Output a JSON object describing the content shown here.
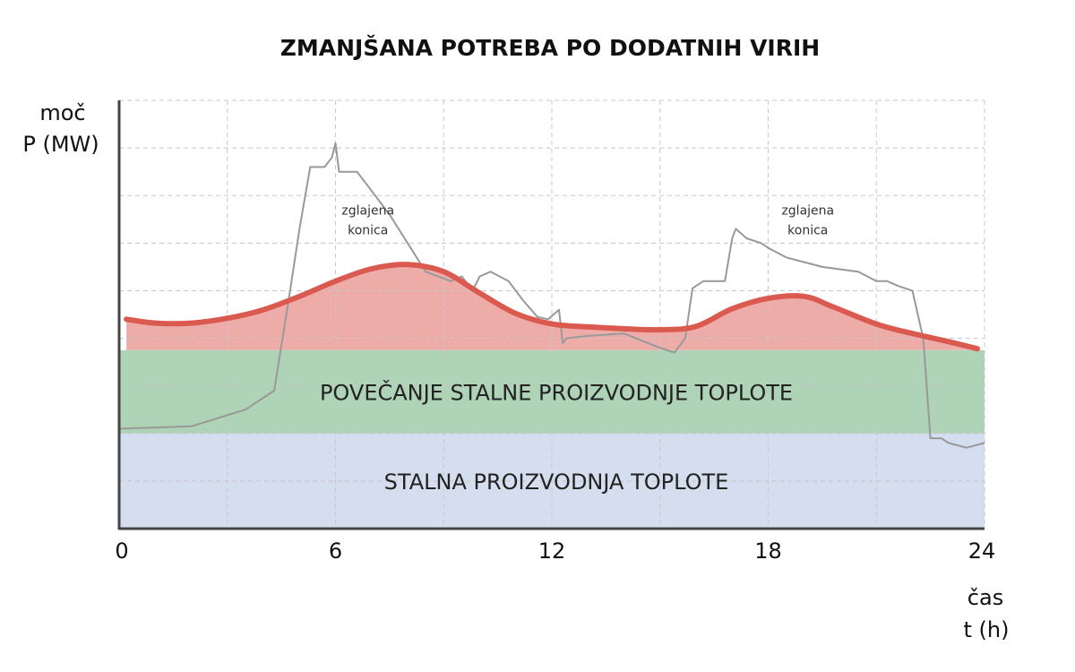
{
  "chart_data": {
    "type": "area",
    "title": "ZMANJŠANA POTREBA PO DODATNIH VIRIH",
    "ylabel": [
      "moč",
      "P (MW)"
    ],
    "xlabel": [
      "čas",
      "t (h)"
    ],
    "xlim": [
      0,
      24
    ],
    "ylim": [
      0,
      9
    ],
    "x_ticks": [
      0,
      6,
      12,
      18,
      24
    ],
    "grid": true,
    "colors": {
      "base_band": "#d4deef",
      "increase_band": "#aed3b6",
      "reduced_area": "#eeaca9",
      "reduced_line": "#db5a50",
      "original_line": "#999999",
      "grid": "#c8c8c8",
      "axis": "#444444"
    },
    "bands": [
      {
        "name": "STALNA PROIZVODNJA TOPLOTE",
        "from": 0,
        "to": 2.0
      },
      {
        "name": "POVEČANJE STALNE PROIZVODNJE TOPLOTE",
        "from": 2.0,
        "to": 3.75
      }
    ],
    "annotations": [
      {
        "text": [
          "zglajena",
          "konica"
        ],
        "x": 6.9,
        "y": 6.6
      },
      {
        "text": [
          "zglajena",
          "konica"
        ],
        "x": 19.1,
        "y": 6.6
      }
    ],
    "series": [
      {
        "role": "original",
        "x": [
          0,
          2,
          3.5,
          4.3,
          4.7,
          5.0,
          5.3,
          5.7,
          5.9,
          6.0,
          6.1,
          6.3,
          6.6,
          7.5,
          8.5,
          9.2,
          9.5,
          9.8,
          10.0,
          10.3,
          10.8,
          11.2,
          11.6,
          11.9,
          12.2,
          12.3,
          12.4,
          13.0,
          14.0,
          15.0,
          15.4,
          15.7,
          15.9,
          16.2,
          16.8,
          17.0,
          17.1,
          17.4,
          17.8,
          18.0,
          18.5,
          19.5,
          20.5,
          21.0,
          21.3,
          21.6,
          22.0,
          22.3,
          22.5,
          22.8,
          23.0,
          23.5,
          24.0
        ],
        "y": [
          2.1,
          2.15,
          2.5,
          2.9,
          4.8,
          6.3,
          7.6,
          7.6,
          7.8,
          8.1,
          7.5,
          7.5,
          7.5,
          6.6,
          5.4,
          5.2,
          5.3,
          5.0,
          5.3,
          5.4,
          5.2,
          4.8,
          4.45,
          4.4,
          4.6,
          3.9,
          4.0,
          4.05,
          4.1,
          3.8,
          3.7,
          4.0,
          5.05,
          5.2,
          5.2,
          6.1,
          6.3,
          6.1,
          6.0,
          5.9,
          5.7,
          5.5,
          5.4,
          5.2,
          5.2,
          5.1,
          5.0,
          4.0,
          1.9,
          1.9,
          1.8,
          1.7,
          1.8
        ]
      },
      {
        "role": "reduced",
        "x": [
          0.2,
          1,
          2,
          3,
          4,
          5,
          6,
          7,
          8,
          9,
          10,
          11,
          12,
          13,
          14,
          15,
          16,
          17,
          18,
          19,
          19.8,
          21,
          22,
          23,
          23.8
        ],
        "y": [
          4.4,
          4.32,
          4.32,
          4.42,
          4.6,
          4.88,
          5.2,
          5.46,
          5.55,
          5.4,
          4.95,
          4.52,
          4.3,
          4.24,
          4.2,
          4.18,
          4.25,
          4.62,
          4.84,
          4.88,
          4.66,
          4.3,
          4.1,
          3.93,
          3.78
        ]
      }
    ]
  }
}
